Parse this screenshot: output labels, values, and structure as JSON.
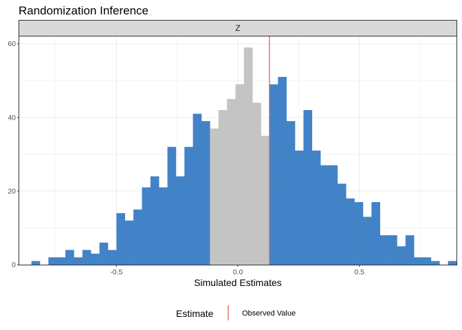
{
  "chart_data": {
    "type": "bar",
    "title": "Randomization Inference",
    "facet_label": "Z",
    "xlabel": "Simulated Estimates",
    "ylabel": "",
    "xlim": [
      -0.9,
      0.9
    ],
    "ylim": [
      0,
      62
    ],
    "x_ticks": [
      -0.5,
      0.0,
      0.5
    ],
    "x_tick_labels": [
      "-0.5",
      "0.0",
      "0.5"
    ],
    "y_ticks": [
      0,
      20,
      40,
      60
    ],
    "y_tick_labels": [
      "0",
      "20",
      "40",
      "60"
    ],
    "grid": true,
    "bin_width": 0.035,
    "bins": [
      {
        "x": -0.85,
        "count": 1
      },
      {
        "x": -0.78,
        "count": 2
      },
      {
        "x": -0.745,
        "count": 2
      },
      {
        "x": -0.71,
        "count": 4
      },
      {
        "x": -0.675,
        "count": 2
      },
      {
        "x": -0.64,
        "count": 4
      },
      {
        "x": -0.605,
        "count": 3
      },
      {
        "x": -0.57,
        "count": 6
      },
      {
        "x": -0.535,
        "count": 4
      },
      {
        "x": -0.5,
        "count": 14
      },
      {
        "x": -0.465,
        "count": 12
      },
      {
        "x": -0.43,
        "count": 15
      },
      {
        "x": -0.395,
        "count": 21
      },
      {
        "x": -0.36,
        "count": 24
      },
      {
        "x": -0.325,
        "count": 21
      },
      {
        "x": -0.29,
        "count": 32
      },
      {
        "x": -0.255,
        "count": 24
      },
      {
        "x": -0.22,
        "count": 32
      },
      {
        "x": -0.185,
        "count": 41
      },
      {
        "x": -0.15,
        "count": 39
      },
      {
        "x": -0.115,
        "count": 37
      },
      {
        "x": -0.08,
        "count": 42
      },
      {
        "x": -0.045,
        "count": 45
      },
      {
        "x": -0.01,
        "count": 49
      },
      {
        "x": 0.025,
        "count": 59
      },
      {
        "x": 0.06,
        "count": 44
      },
      {
        "x": 0.095,
        "count": 35
      },
      {
        "x": 0.13,
        "count": 49
      },
      {
        "x": 0.165,
        "count": 51
      },
      {
        "x": 0.2,
        "count": 39
      },
      {
        "x": 0.235,
        "count": 31
      },
      {
        "x": 0.27,
        "count": 42
      },
      {
        "x": 0.305,
        "count": 31
      },
      {
        "x": 0.34,
        "count": 27
      },
      {
        "x": 0.375,
        "count": 27
      },
      {
        "x": 0.41,
        "count": 22
      },
      {
        "x": 0.445,
        "count": 18
      },
      {
        "x": 0.48,
        "count": 17
      },
      {
        "x": 0.515,
        "count": 13
      },
      {
        "x": 0.55,
        "count": 17
      },
      {
        "x": 0.585,
        "count": 8
      },
      {
        "x": 0.62,
        "count": 8
      },
      {
        "x": 0.655,
        "count": 5
      },
      {
        "x": 0.69,
        "count": 8
      },
      {
        "x": 0.725,
        "count": 2
      },
      {
        "x": 0.76,
        "count": 2
      },
      {
        "x": 0.795,
        "count": 1
      },
      {
        "x": 0.865,
        "count": 1
      }
    ],
    "central_region": [
      -0.13,
      0.13
    ],
    "observed_value": 0.13,
    "colors": {
      "tail": "#4283c7",
      "central": "#c4c4c4",
      "observed_line": "#e3605e",
      "grid": "#ebebeb",
      "strip_fill": "#d9d9d9",
      "panel_border": "#333333"
    },
    "legend": {
      "position": "bottom",
      "title": "Estimate",
      "label": "Observed Value"
    }
  }
}
